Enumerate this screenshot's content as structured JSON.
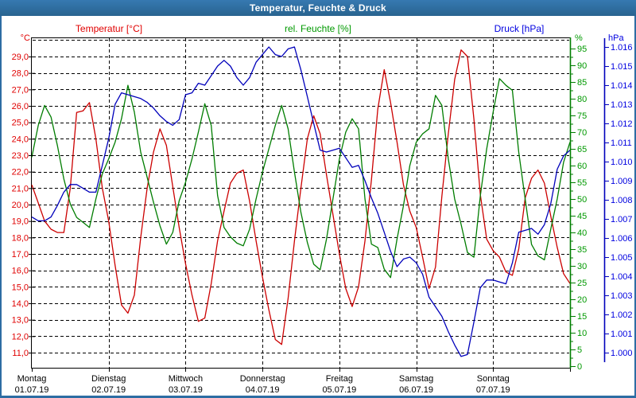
{
  "window": {
    "title": "Temperatur, Feuchte & Druck"
  },
  "colors": {
    "titlebar": "#2d6da3",
    "frame": "#2d6da3",
    "background": "#ffffff",
    "grid": "#000000",
    "temperature_curve": "#cc0000",
    "temperature_label": "#e00000",
    "humidity_curve": "#007d00",
    "humidity_label": "#009900",
    "pressure_curve": "#0000bb",
    "pressure_label": "#0000e0",
    "day_label": "#000000"
  },
  "chart_data": {
    "type": "line",
    "title": "Temperatur, Feuchte & Druck",
    "sample_interval_hours": 2,
    "x_axis": {
      "range_hours": 168,
      "gridlines": "at each midnight",
      "days": [
        {
          "label": "Montag",
          "date": "01.07.19"
        },
        {
          "label": "Dienstag",
          "date": "02.07.19"
        },
        {
          "label": "Mittwoch",
          "date": "03.07.19"
        },
        {
          "label": "Donnerstag",
          "date": "04.07.19"
        },
        {
          "label": "Freitag",
          "date": "05.07.19"
        },
        {
          "label": "Samstag",
          "date": "06.07.19"
        },
        {
          "label": "Sonntag",
          "date": "07.07.19"
        }
      ]
    },
    "axes": {
      "temperature": {
        "header": "Temperatur [°C]",
        "unit": "°C",
        "side": "left",
        "tick_min": 11,
        "tick_max": 29,
        "tick_step": 1,
        "tick_labels": [
          "29,0",
          "28,0",
          "27,0",
          "26,0",
          "25,0",
          "24,0",
          "23,0",
          "22,0",
          "21,0",
          "20,0",
          "19,0",
          "18,0",
          "17,0",
          "16,0",
          "15,0",
          "14,0",
          "13,0",
          "12,0",
          "11,0"
        ]
      },
      "humidity": {
        "header": "rel. Feuchte [%]",
        "unit": "%",
        "side": "right-inner",
        "tick_min": 0,
        "tick_max": 95,
        "tick_step": 5,
        "minor_tick_step": 2.5,
        "tick_labels": [
          "95",
          "90",
          "85",
          "80",
          "75",
          "70",
          "65",
          "60",
          "55",
          "50",
          "45",
          "40",
          "35",
          "30",
          "25",
          "20",
          "15",
          "10",
          "5",
          "0"
        ]
      },
      "pressure": {
        "header": "Druck [hPa]",
        "unit": "hPa",
        "side": "right-outer",
        "tick_min": 1.0,
        "tick_max": 1.016,
        "tick_step": 0.001,
        "tick_labels": [
          "1.016",
          "1.015",
          "1.014",
          "1.013",
          "1.012",
          "1.011",
          "1.010",
          "1.009",
          "1.008",
          "1.007",
          "1.006",
          "1.005",
          "1.004",
          "1.003",
          "1.002",
          "1.001",
          "1.000"
        ]
      }
    },
    "series": [
      {
        "name": "Temperatur",
        "axis": "temperature",
        "color": "#cc0000",
        "values": [
          21.2,
          20.1,
          19.0,
          18.5,
          18.3,
          18.3,
          21.0,
          25.6,
          25.7,
          26.2,
          24.0,
          21.0,
          19.0,
          16.3,
          13.9,
          13.4,
          14.5,
          18.0,
          21.0,
          23.2,
          24.6,
          23.6,
          21.1,
          18.6,
          16.4,
          14.5,
          12.9,
          13.1,
          15.2,
          17.8,
          19.6,
          21.3,
          21.9,
          22.1,
          20.2,
          17.8,
          15.6,
          13.6,
          11.8,
          11.5,
          14.3,
          17.8,
          21.0,
          24.0,
          25.4,
          24.3,
          21.8,
          19.4,
          17.0,
          14.9,
          13.8,
          15.0,
          17.8,
          21.5,
          25.8,
          28.2,
          26.2,
          23.8,
          21.2,
          19.6,
          18.6,
          16.8,
          14.9,
          16.2,
          20.5,
          24.3,
          27.6,
          29.4,
          29.0,
          25.2,
          20.6,
          17.9,
          17.2,
          16.8,
          15.9,
          15.7,
          17.3,
          20.4,
          21.6,
          22.1,
          21.3,
          19.3,
          17.4,
          15.8,
          15.2
        ]
      },
      {
        "name": "rel. Feuchte",
        "axis": "humidity",
        "color": "#007d00",
        "values": [
          62.5,
          72,
          78,
          74.5,
          66,
          56,
          48.5,
          44.5,
          43,
          41.5,
          50,
          57.5,
          62,
          67,
          74,
          84,
          76,
          64,
          56.5,
          49,
          42,
          36.5,
          40,
          49.5,
          55,
          62,
          70,
          78.5,
          72,
          51,
          41.5,
          38.7,
          36.8,
          36,
          41,
          50,
          58,
          65,
          72,
          78,
          71,
          58,
          46,
          37,
          30.5,
          28.8,
          38,
          50,
          62,
          70,
          74,
          71,
          50,
          36.5,
          35.5,
          29,
          26.5,
          38,
          48,
          60,
          67,
          69.5,
          71,
          81,
          78,
          62,
          50,
          42.4,
          34,
          32.6,
          51,
          65,
          76,
          86,
          84,
          82.5,
          64,
          50,
          36.4,
          33,
          31.8,
          41,
          50,
          61,
          67
        ]
      },
      {
        "name": "Druck",
        "axis": "pressure",
        "color": "#0000bb",
        "values": [
          1.0071,
          1.0069,
          1.0069,
          1.0071,
          1.0077,
          1.0084,
          1.0088,
          1.0088,
          1.0086,
          1.0084,
          1.0084,
          1.0098,
          1.0112,
          1.013,
          1.0136,
          1.0135,
          1.0134,
          1.0133,
          1.0131,
          1.0128,
          1.0124,
          1.0121,
          1.0119,
          1.0122,
          1.0135,
          1.0136,
          1.0141,
          1.014,
          1.0145,
          1.015,
          1.0153,
          1.015,
          1.0144,
          1.014,
          1.0144,
          1.0152,
          1.0156,
          1.016,
          1.0156,
          1.0155,
          1.0159,
          1.016,
          1.0148,
          1.0134,
          1.012,
          1.0106,
          1.0105,
          1.0106,
          1.0107,
          1.0102,
          1.0097,
          1.0098,
          1.009,
          1.0081,
          1.0073,
          1.0063,
          1.0053,
          1.0045,
          1.0049,
          1.005,
          1.0047,
          1.0041,
          1.0029,
          1.0024,
          1.0019,
          1.0011,
          1.0004,
          0.9998,
          0.9999,
          1.0016,
          1.0034,
          1.0038,
          1.0038,
          1.0037,
          1.0036,
          1.0047,
          1.0063,
          1.0064,
          1.0065,
          1.0062,
          1.0067,
          1.0078,
          1.0096,
          1.0103,
          1.0106
        ]
      }
    ]
  }
}
